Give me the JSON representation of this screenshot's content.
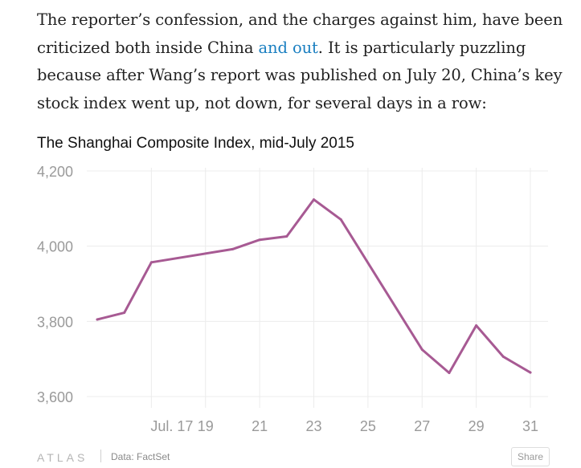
{
  "article": {
    "text_before_link": "The reporter’s confession, and the charges against him, have been criticized both inside China ",
    "link_text": "and out",
    "text_after_link": ". It is particularly puzzling because after Wang’s report was published on July 20, China’s key stock index went up, not down, for several days in a row:"
  },
  "chart_data": {
    "type": "line",
    "title": "The Shanghai Composite Index, mid-July 2015",
    "xlabel": "",
    "ylabel": "",
    "x": [
      15,
      16,
      17,
      20,
      21,
      22,
      23,
      24,
      27,
      28,
      29,
      30,
      31
    ],
    "values": [
      3805,
      3823,
      3957,
      3992,
      4017,
      4026,
      4124,
      4071,
      3725,
      3663,
      3789,
      3706,
      3664
    ],
    "series_color": "#a75a93",
    "x_tick_labels": [
      {
        "x": 17,
        "label": "Jul. 17"
      },
      {
        "x": 19,
        "label": "19"
      },
      {
        "x": 21,
        "label": "21"
      },
      {
        "x": 23,
        "label": "23"
      },
      {
        "x": 25,
        "label": "25"
      },
      {
        "x": 27,
        "label": "27"
      },
      {
        "x": 29,
        "label": "29"
      },
      {
        "x": 31,
        "label": "31"
      }
    ],
    "y_ticks": [
      3600,
      3800,
      4000,
      4200
    ],
    "y_tick_labels": [
      "3,600",
      "3,800",
      "4,000",
      "4,200"
    ],
    "ylim": [
      3600,
      4200
    ],
    "xlim": [
      15,
      31
    ],
    "grid": true
  },
  "footer": {
    "logo_text": "ATLAS",
    "source": "Data: FactSet",
    "share_label": "Share"
  }
}
